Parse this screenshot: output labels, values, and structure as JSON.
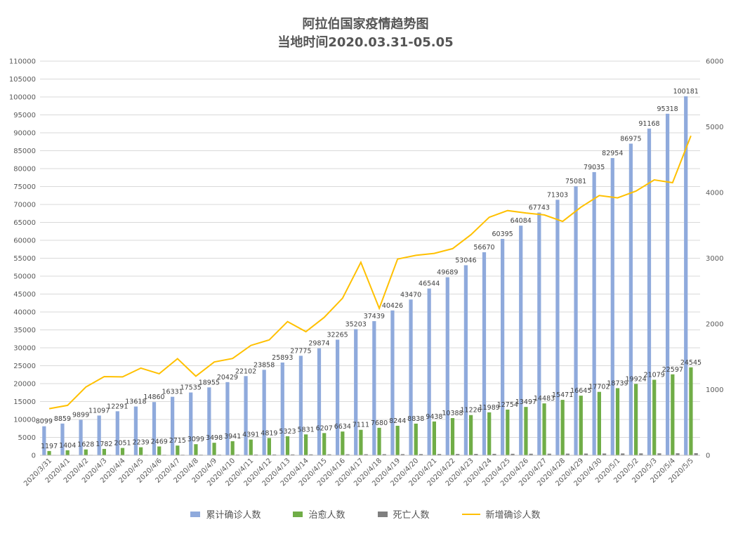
{
  "chart_data": {
    "type": "bar",
    "title": "阿拉伯国家疫情趋势图",
    "subtitle": "当地时间2020.03.31-05.05",
    "categories": [
      "2020/3/31",
      "2020/4/1",
      "2020/4/2",
      "2020/4/3",
      "2020/4/4",
      "2020/4/5",
      "2020/4/6",
      "2020/4/7",
      "2020/4/8",
      "2020/4/9",
      "2020/4/10",
      "2020/4/11",
      "2020/4/12",
      "2020/4/13",
      "2020/4/14",
      "2020/4/15",
      "2020/4/16",
      "2020/4/17",
      "2020/4/18",
      "2020/4/19",
      "2020/4/20",
      "2020/4/21",
      "2020/4/22",
      "2020/4/23",
      "2020/4/24",
      "2020/4/25",
      "2020/4/26",
      "2020/4/27",
      "2020/4/28",
      "2020/4/29",
      "2020/4/30",
      "2020/5/1",
      "2020/5/2",
      "2020/5/3",
      "2020/5/4",
      "2020/5/5"
    ],
    "series": [
      {
        "name": "累计确诊人数",
        "type": "bar",
        "axis": "left",
        "color": "#8faadc",
        "labels": true,
        "values": [
          8099,
          8859,
          9899,
          11097,
          12291,
          13618,
          14860,
          16331,
          17535,
          18955,
          20429,
          22102,
          23858,
          25893,
          27775,
          29874,
          32265,
          35203,
          37439,
          40426,
          43470,
          46544,
          49689,
          53046,
          56670,
          60395,
          64084,
          67743,
          71303,
          75081,
          79035,
          82954,
          86975,
          91168,
          95318,
          100181
        ]
      },
      {
        "name": "治愈人数",
        "type": "bar",
        "axis": "left",
        "color": "#70ad47",
        "labels": true,
        "values": [
          1197,
          1404,
          1628,
          1782,
          2051,
          2239,
          2469,
          2715,
          3099,
          3498,
          3941,
          4391,
          4819,
          5323,
          5831,
          6207,
          6634,
          7111,
          7680,
          8244,
          8838,
          9438,
          10388,
          11226,
          11989,
          12754,
          13497,
          14483,
          15471,
          16645,
          17702,
          18739,
          19924,
          21079,
          22597,
          24545
        ]
      },
      {
        "name": "死亡人数",
        "type": "bar",
        "axis": "left",
        "color": "#7f7f7f",
        "labels": false,
        "values": [
          107,
          113,
          121,
          131,
          141,
          150,
          158,
          167,
          178,
          189,
          203,
          217,
          231,
          245,
          260,
          275,
          290,
          305,
          320,
          334,
          349,
          364,
          379,
          394,
          409,
          424,
          439,
          455,
          470,
          485,
          500,
          516,
          532,
          548,
          564,
          580
        ]
      },
      {
        "name": "新增确诊人数",
        "type": "line",
        "axis": "right",
        "color": "#ffc000",
        "labels": false,
        "values": [
          710,
          760,
          1040,
          1198,
          1194,
          1327,
          1242,
          1471,
          1204,
          1420,
          1474,
          1673,
          1756,
          2035,
          1882,
          2099,
          2391,
          2938,
          2236,
          2987,
          3044,
          3074,
          3145,
          3357,
          3624,
          3725,
          3689,
          3659,
          3560,
          3778,
          3954,
          3919,
          4021,
          4193,
          4150,
          4863
        ]
      }
    ],
    "y_left": {
      "min": 0,
      "max": 110000,
      "step": 5000
    },
    "y_right": {
      "min": 0,
      "max": 6000,
      "step": 1000
    },
    "legend_position": "bottom",
    "grid": true
  }
}
